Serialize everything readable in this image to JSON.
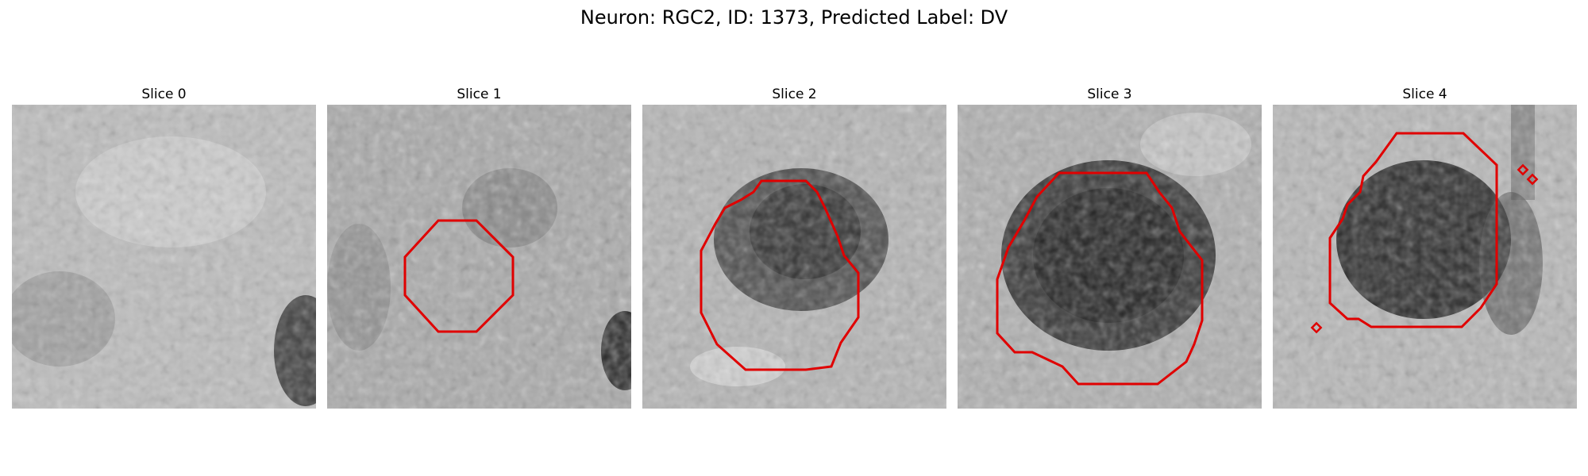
{
  "figure": {
    "title": "Neuron: RGC2, ID: 1373, Predicted Label: DV",
    "contour_color": "#e00000",
    "panels": [
      {
        "label": "Slice 0",
        "image": "grayscale-microscopy-slice",
        "contour": false
      },
      {
        "label": "Slice 1",
        "image": "grayscale-microscopy-slice",
        "contour": true
      },
      {
        "label": "Slice 2",
        "image": "grayscale-microscopy-slice",
        "contour": true
      },
      {
        "label": "Slice 3",
        "image": "grayscale-microscopy-slice",
        "contour": true
      },
      {
        "label": "Slice 4",
        "image": "grayscale-microscopy-slice",
        "contour": true
      }
    ]
  }
}
